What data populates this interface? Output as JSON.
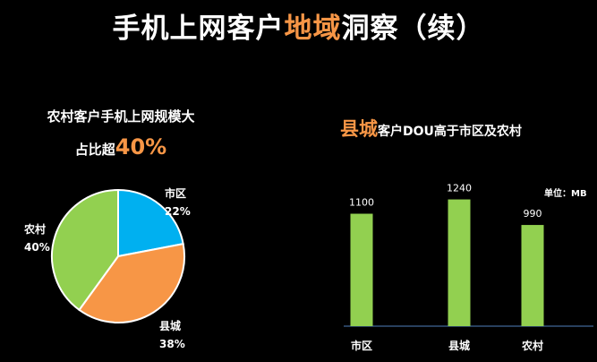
{
  "title": {
    "part1": "手机上网客户",
    "highlight": "地域",
    "part2": "洞察（续）"
  },
  "left_subtitle": {
    "line1": "农村客户手机上网规模大",
    "line2_prefix": "占比超",
    "line2_value": "40%"
  },
  "right_subtitle": {
    "highlight": "县城",
    "rest": "客户DOU高于市区及农村"
  },
  "colors": {
    "accent": "#f79646",
    "shiqu": "#00b0f0",
    "xiancheng": "#f79646",
    "nongcun": "#92d050",
    "bar": "#92d050",
    "axis": "#4f81bd"
  },
  "chart_data": [
    {
      "type": "pie",
      "title": "",
      "slices": [
        {
          "label": "市区",
          "value": 22,
          "pct_label": "22%"
        },
        {
          "label": "县城",
          "value": 38,
          "pct_label": "38%"
        },
        {
          "label": "农村",
          "value": 40,
          "pct_label": "40%"
        }
      ]
    },
    {
      "type": "bar",
      "title": "",
      "unit": "单位：MB",
      "categories": [
        "市区",
        "县城",
        "农村"
      ],
      "values": [
        1100,
        1240,
        990
      ],
      "value_labels": [
        "1100",
        "1240",
        "990"
      ],
      "ylim": [
        0,
        1350
      ],
      "grid": false
    }
  ]
}
